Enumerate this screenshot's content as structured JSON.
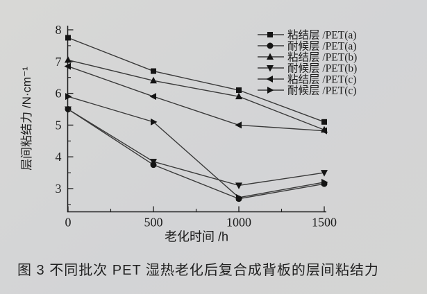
{
  "figure": {
    "caption": "图 3  不同批次 PET 湿热老化后复合成背板的层间粘结力"
  },
  "chart_data": {
    "type": "line",
    "x": [
      0,
      500,
      1000,
      1500
    ],
    "xlabel": "老化时间 /h",
    "ylabel": "层间粘结力 /N·cm⁻¹",
    "xlim": [
      0,
      1575
    ],
    "ylim": [
      2.3,
      8.15
    ],
    "xticks_major": [
      0,
      500,
      1000,
      1500
    ],
    "xticks_minor": [
      250,
      750,
      1250
    ],
    "yticks_major": [
      8,
      7,
      6,
      5,
      4,
      3
    ],
    "yticks_minor": [
      7.5,
      6.5,
      5.5,
      4.5,
      3.5,
      2.5
    ],
    "grid": false,
    "legend_position": "top-right",
    "series": [
      {
        "name": "粘结层 /PET(a)",
        "marker": "square",
        "values": [
          7.75,
          6.7,
          6.1,
          5.1
        ]
      },
      {
        "name": "耐候层 /PET(a)",
        "marker": "circle",
        "values": [
          5.5,
          3.75,
          2.68,
          3.15
        ]
      },
      {
        "name": "粘结层 /PET(b)",
        "marker": "triangle-up",
        "values": [
          7.05,
          6.4,
          5.9,
          4.85
        ]
      },
      {
        "name": "耐候层 /PET(b)",
        "marker": "triangle-down",
        "values": [
          5.5,
          3.85,
          3.1,
          3.5
        ]
      },
      {
        "name": "粘结层 /PET(c)",
        "marker": "triangle-left",
        "values": [
          6.85,
          5.9,
          5.0,
          4.82
        ]
      },
      {
        "name": "耐候层 /PET(c)",
        "marker": "triangle-right",
        "values": [
          5.9,
          5.1,
          2.72,
          3.2
        ]
      }
    ],
    "line_color": "#3a3a3a",
    "marker_color": "#141414",
    "axis_color": "#1c1c1c"
  },
  "colors": {
    "page_bg": "#d4d5d6",
    "text": "#222222"
  }
}
